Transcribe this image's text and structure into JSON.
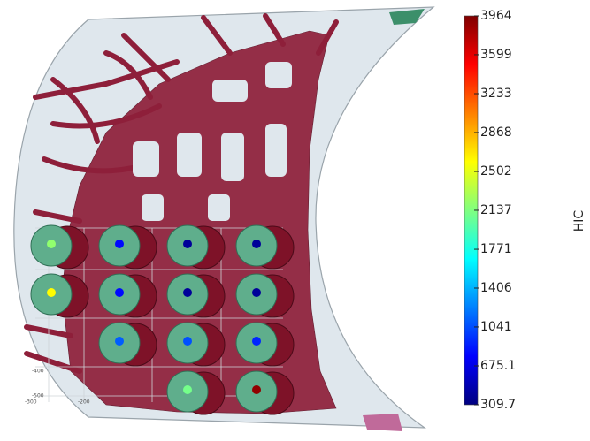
{
  "colorbar": {
    "label": "HIC",
    "lim": [
      309.7,
      3964
    ],
    "ticks": [
      3964,
      3599,
      3233,
      2868,
      2502,
      2137,
      1771,
      1406,
      1041,
      675.1,
      309.7
    ]
  },
  "impact_points": [
    {
      "value": 2200
    },
    {
      "value": 800
    },
    {
      "value": 400
    },
    {
      "value": 400
    },
    {
      "value": 2600
    },
    {
      "value": 800
    },
    {
      "value": 400
    },
    {
      "value": 400
    },
    {
      "value": 1100
    },
    {
      "value": 1050
    },
    {
      "value": 900
    },
    {
      "value": 2100
    },
    {
      "value": 3900
    }
  ],
  "view_axis_labels": [
    "-300",
    "-200",
    "-400",
    "-500"
  ]
}
